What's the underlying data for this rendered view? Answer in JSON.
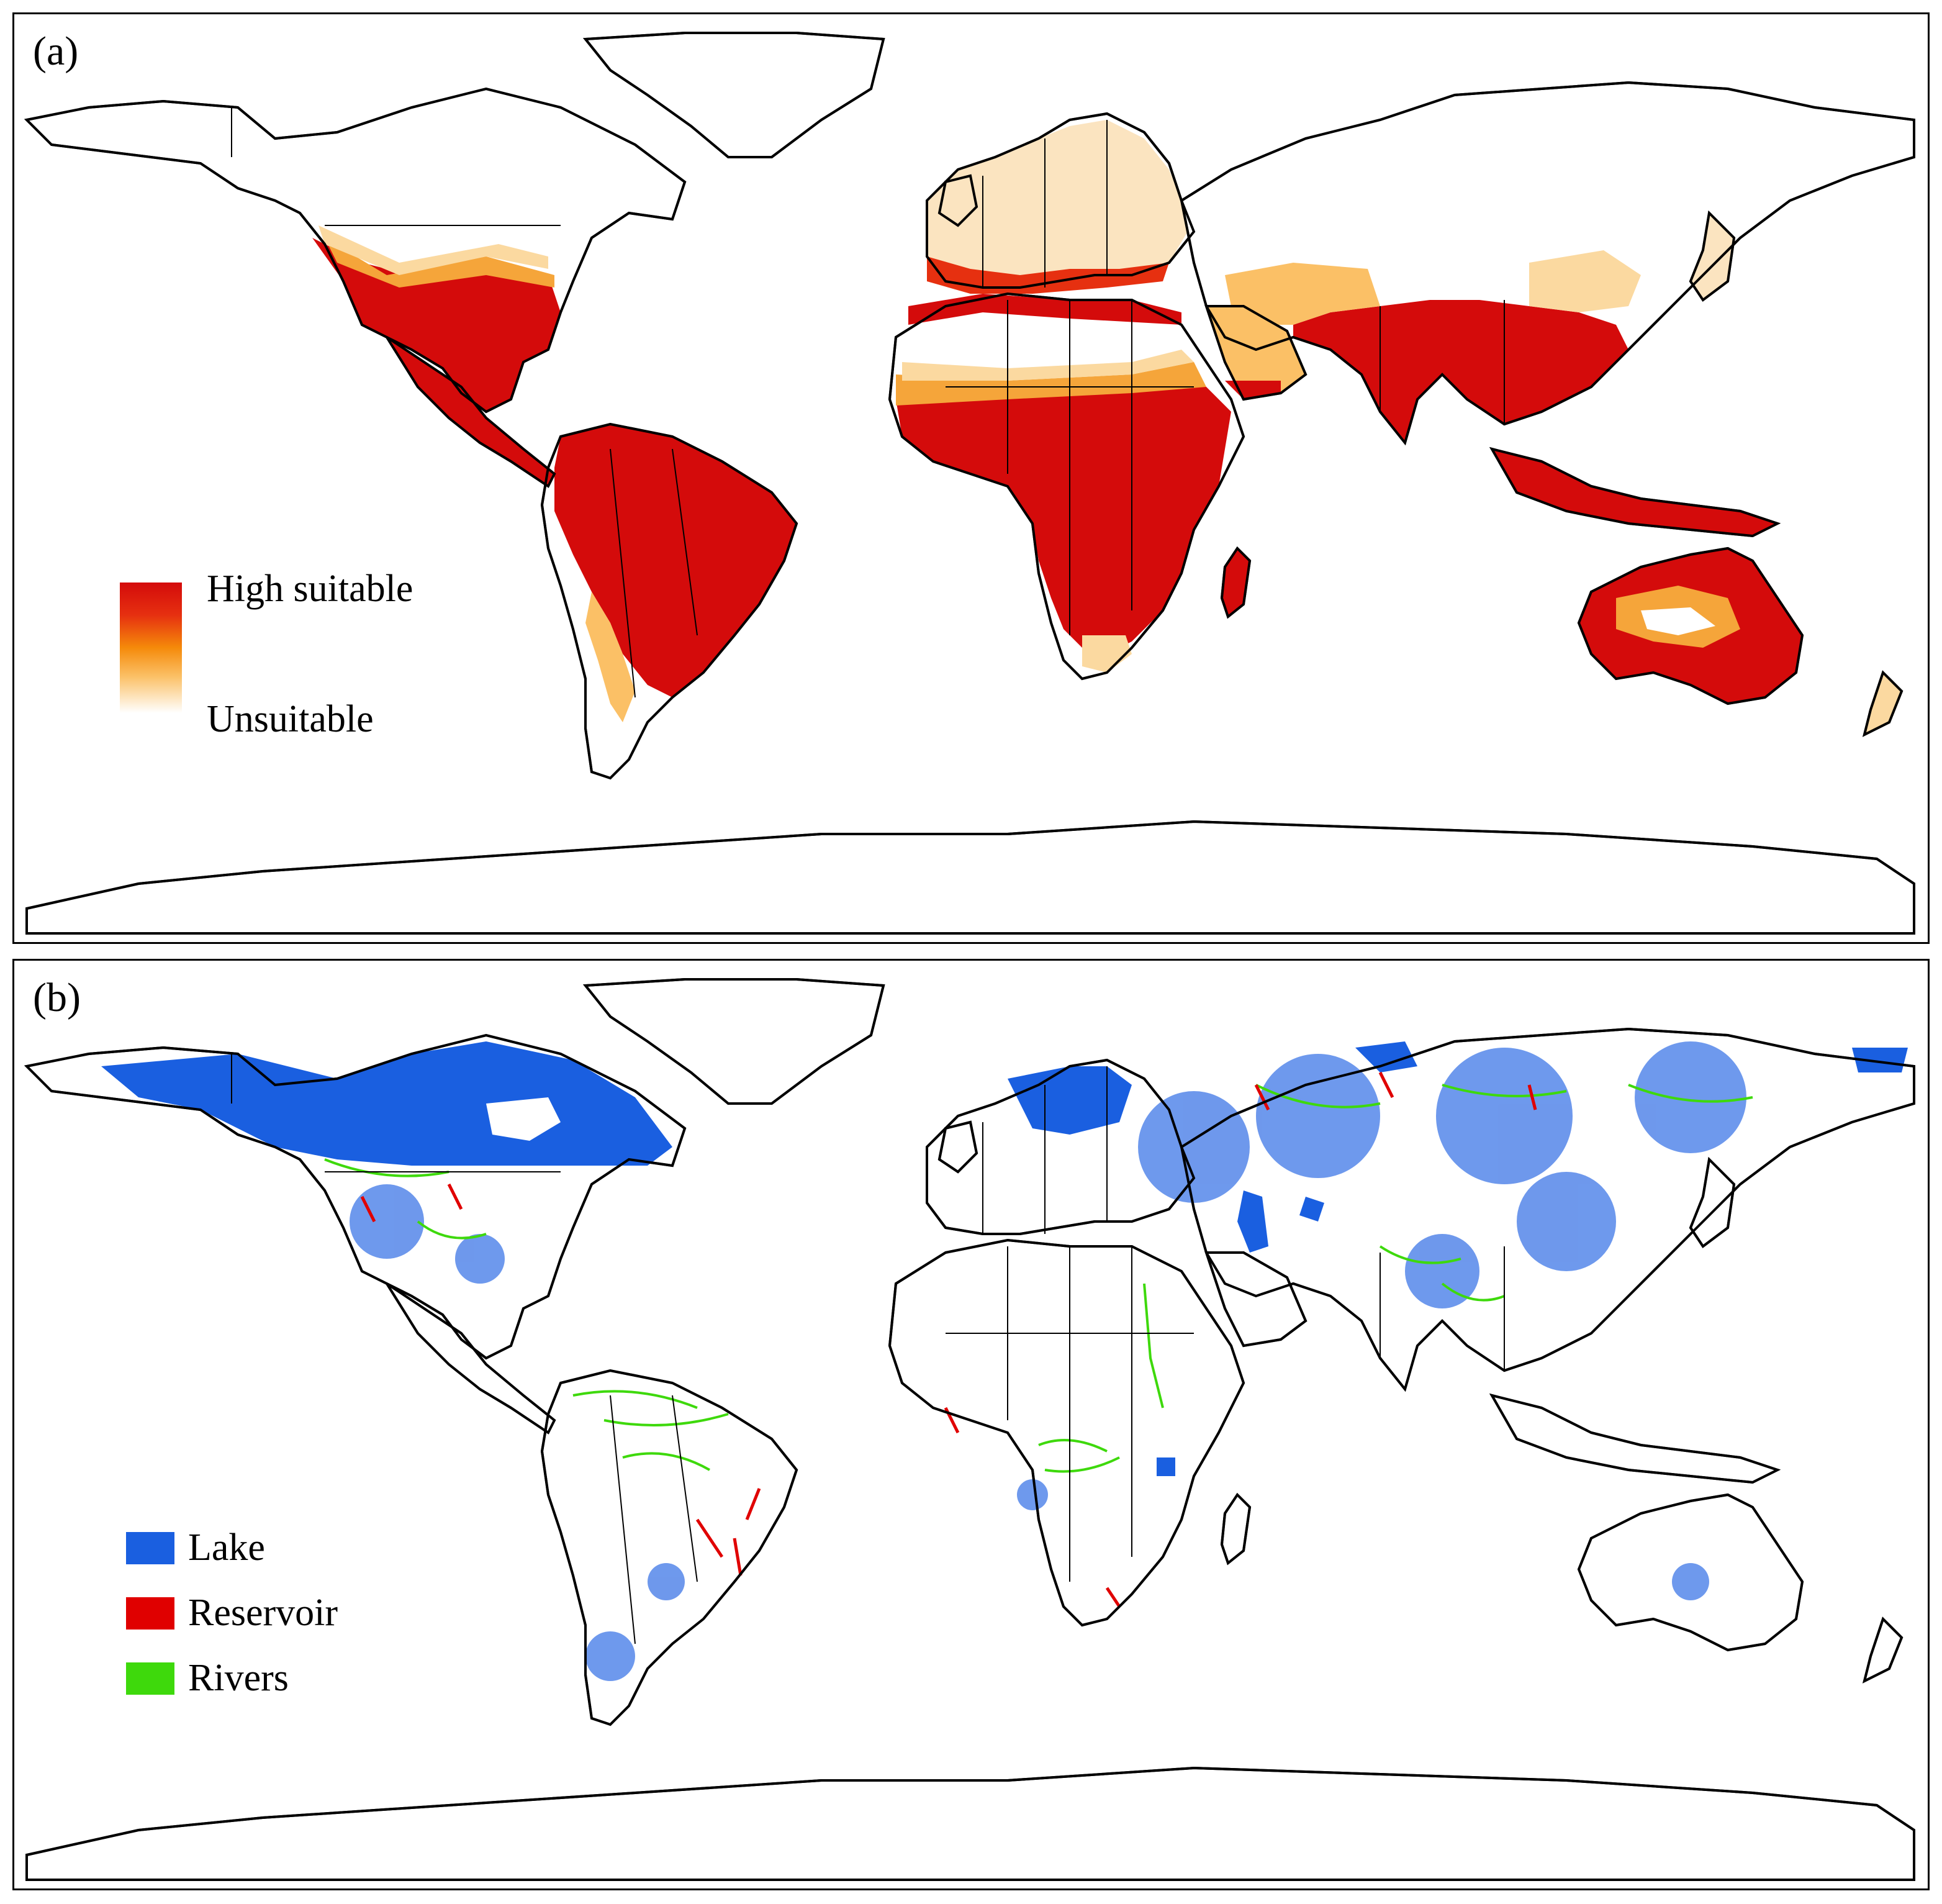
{
  "panels": [
    {
      "label": "(a)",
      "legend": {
        "type": "gradient",
        "high_label": "High suitable",
        "low_label": "Unsuitable",
        "colors": [
          "#d40b0b",
          "#f58a0a",
          "#fbc066",
          "#ffffff"
        ]
      }
    },
    {
      "label": "(b)",
      "legend": {
        "type": "categorical",
        "items": [
          {
            "label": "Lake",
            "color": "#1a5fe0"
          },
          {
            "label": "Reservoir",
            "color": "#e00000"
          },
          {
            "label": "Rivers",
            "color": "#3ed90c"
          }
        ]
      }
    }
  ],
  "styles": {
    "outline_color": "#000000",
    "high_color": "#d40b0b",
    "mid_color": "#f58a0a",
    "low_color": "#fbd9a0"
  }
}
